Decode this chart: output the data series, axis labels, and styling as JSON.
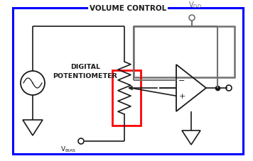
{
  "bg_color": "#ffffff",
  "line_color": "#1a1a1a",
  "gray_color": "#707070",
  "blue_color": "#0000ff",
  "red_color": "#ff0000",
  "title": "VOLUME CONTROL",
  "dp_line1": "DIGITAL",
  "dp_line2": "POTENTIOMETER",
  "vdd_text": "V",
  "vdd_sub": "DD",
  "vbias_text": "V",
  "vbias_sub": "BIAS"
}
